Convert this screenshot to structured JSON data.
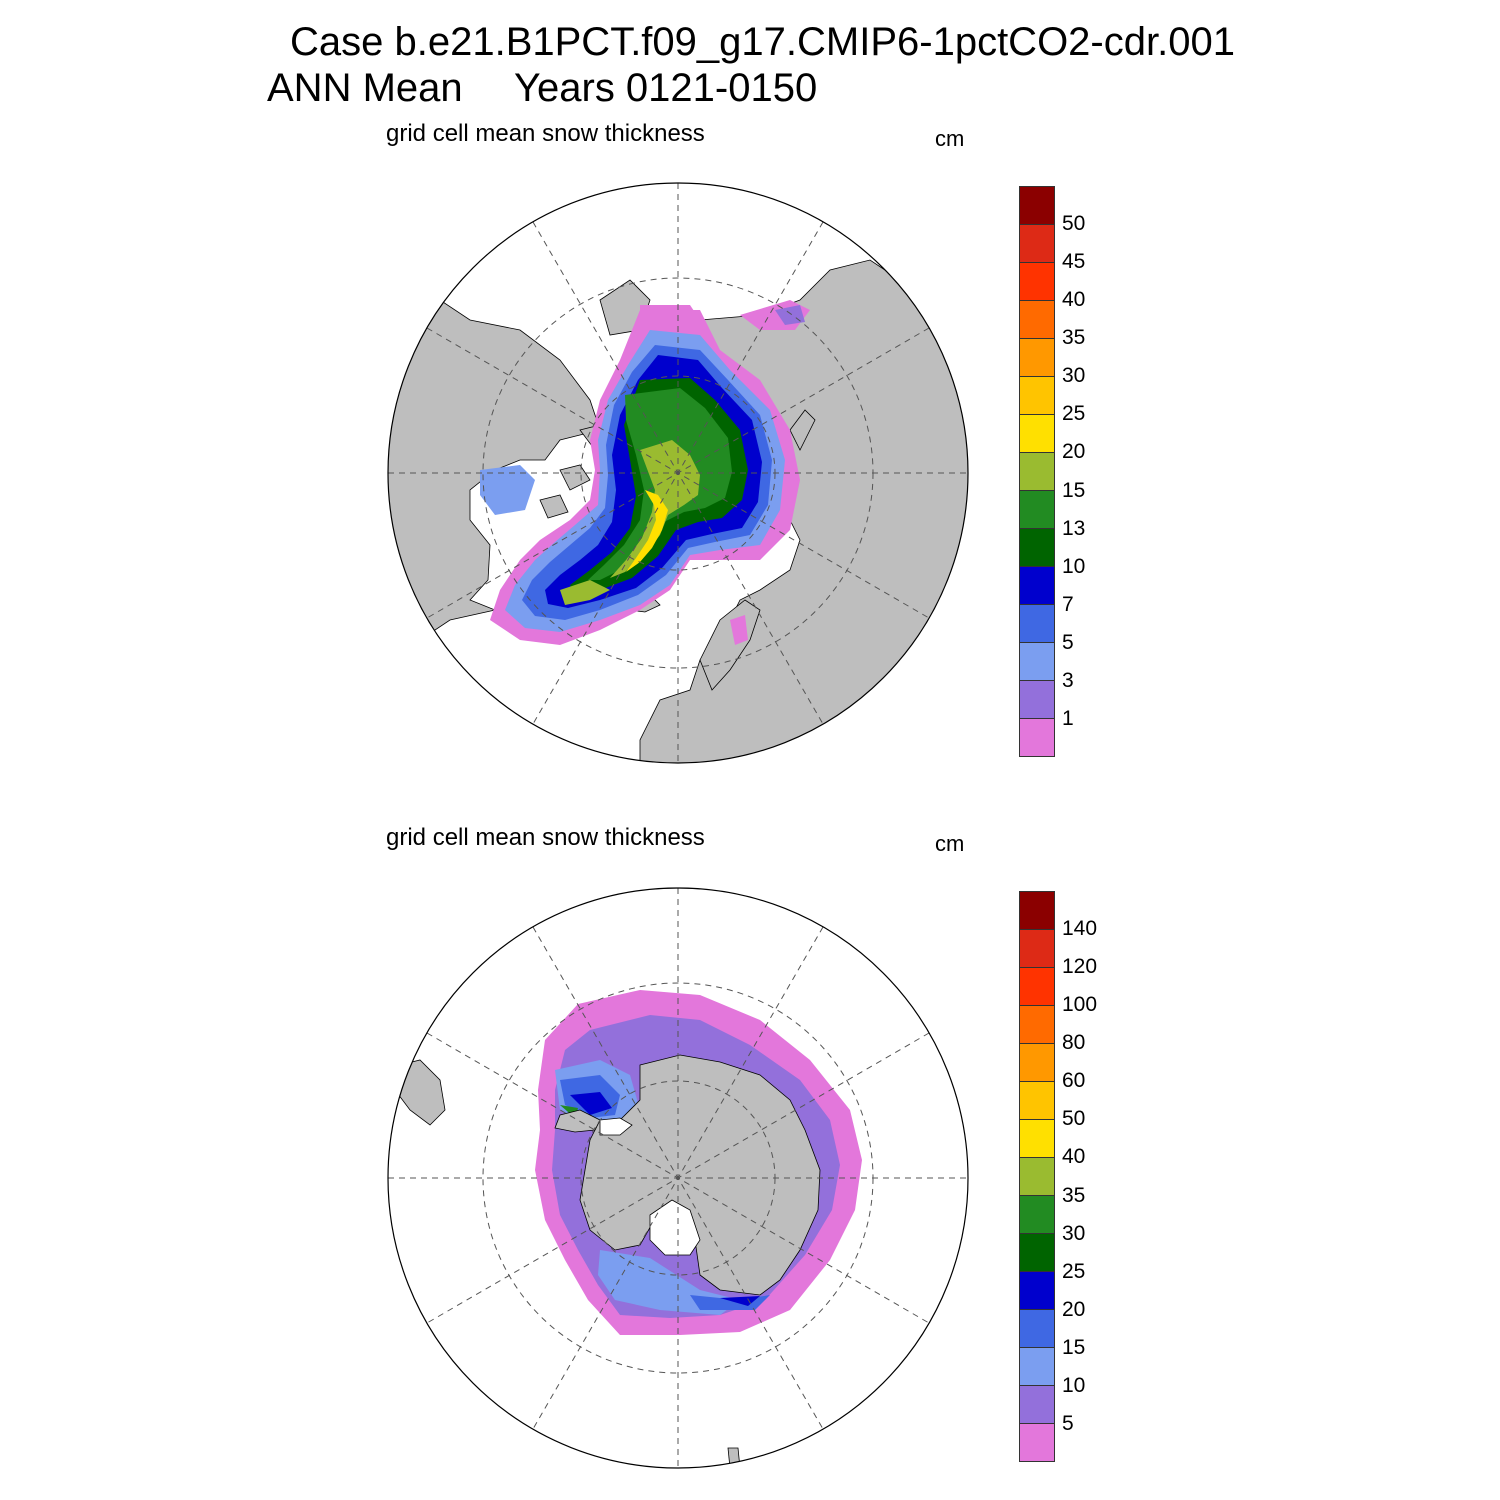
{
  "title": {
    "case_line": "Case b.e21.B1PCT.f09_g17.CMIP6-1pctCO2-cdr.001",
    "ann_mean": "ANN Mean",
    "years": "Years 0121-0150"
  },
  "colors": {
    "land": "#bebebe",
    "ocean": "#ffffff",
    "scale": [
      "#e377db",
      "#9370db",
      "#7b9ef0",
      "#3f68e3",
      "#0000cd",
      "#006400",
      "#228b22",
      "#9abb30",
      "#ffe000",
      "#ffc400",
      "#ff9800",
      "#ff6a00",
      "#ff3300",
      "#dd2a16",
      "#8b0000"
    ]
  },
  "panels": [
    {
      "id": "arctic",
      "hemisphere": "north",
      "title": "grid cell mean snow thickness",
      "units": "cm",
      "levels": [
        "1",
        "3",
        "5",
        "7",
        "10",
        "13",
        "15",
        "20",
        "25",
        "30",
        "35",
        "40",
        "45",
        "50"
      ]
    },
    {
      "id": "antarctic",
      "hemisphere": "south",
      "title": "grid cell mean snow thickness",
      "units": "cm",
      "levels": [
        "5",
        "10",
        "15",
        "20",
        "25",
        "30",
        "35",
        "40",
        "50",
        "60",
        "80",
        "100",
        "120",
        "140"
      ]
    }
  ]
}
